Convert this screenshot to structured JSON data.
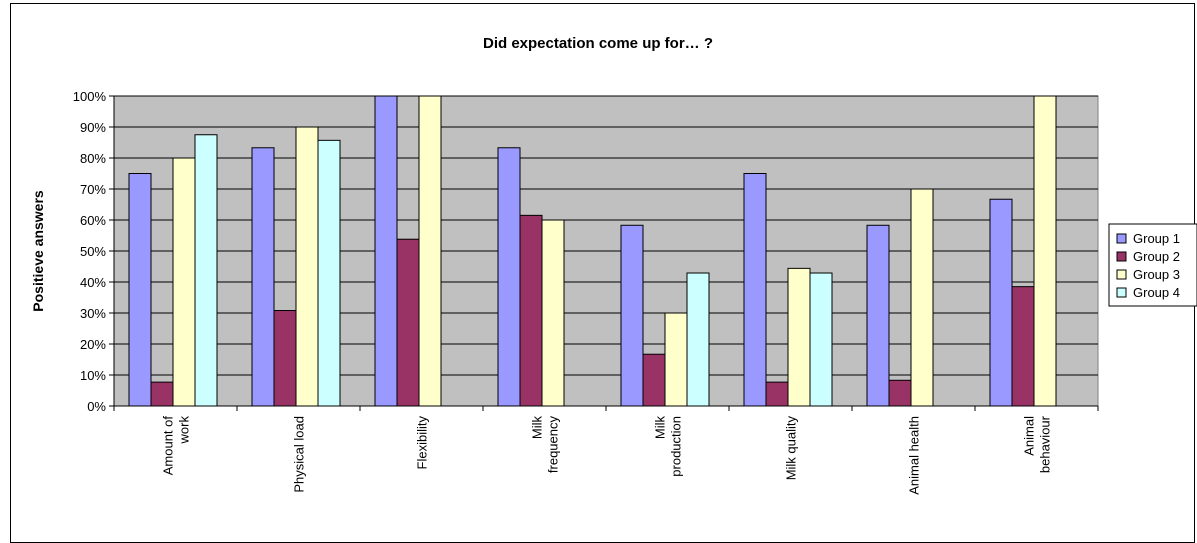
{
  "chart_data": {
    "type": "bar",
    "title": "Did expectation come up for… ?",
    "xlabel": "",
    "ylabel": "Positieve answers",
    "ylim": [
      0,
      100
    ],
    "y_ticks": [
      "0%",
      "10%",
      "20%",
      "30%",
      "40%",
      "50%",
      "60%",
      "70%",
      "80%",
      "90%",
      "100%"
    ],
    "categories": [
      [
        "Amount of",
        "work"
      ],
      [
        "Physical load"
      ],
      [
        "Flexibility"
      ],
      [
        "Milk",
        "frequency"
      ],
      [
        "Milk",
        "production"
      ],
      [
        "Milk quality"
      ],
      [
        "Animal health"
      ],
      [
        "Animal",
        "behaviour"
      ]
    ],
    "series": [
      {
        "name": "Group 1",
        "color": "#9999ff",
        "values": [
          75,
          83.3,
          100,
          83.3,
          58.3,
          75,
          58.3,
          66.7
        ]
      },
      {
        "name": "Group 2",
        "color": "#993366",
        "values": [
          7.7,
          30.8,
          53.8,
          61.5,
          16.7,
          7.7,
          8.3,
          38.5
        ]
      },
      {
        "name": "Group 3",
        "color": "#ffffcc",
        "values": [
          80,
          90,
          100,
          60,
          30,
          44.4,
          70,
          100
        ]
      },
      {
        "name": "Group 4",
        "color": "#ccffff",
        "values": [
          87.5,
          85.7,
          null,
          null,
          42.9,
          42.9,
          null,
          null
        ]
      }
    ],
    "plot_background": "#c0c0c0",
    "grid": true,
    "legend_position": "right"
  }
}
